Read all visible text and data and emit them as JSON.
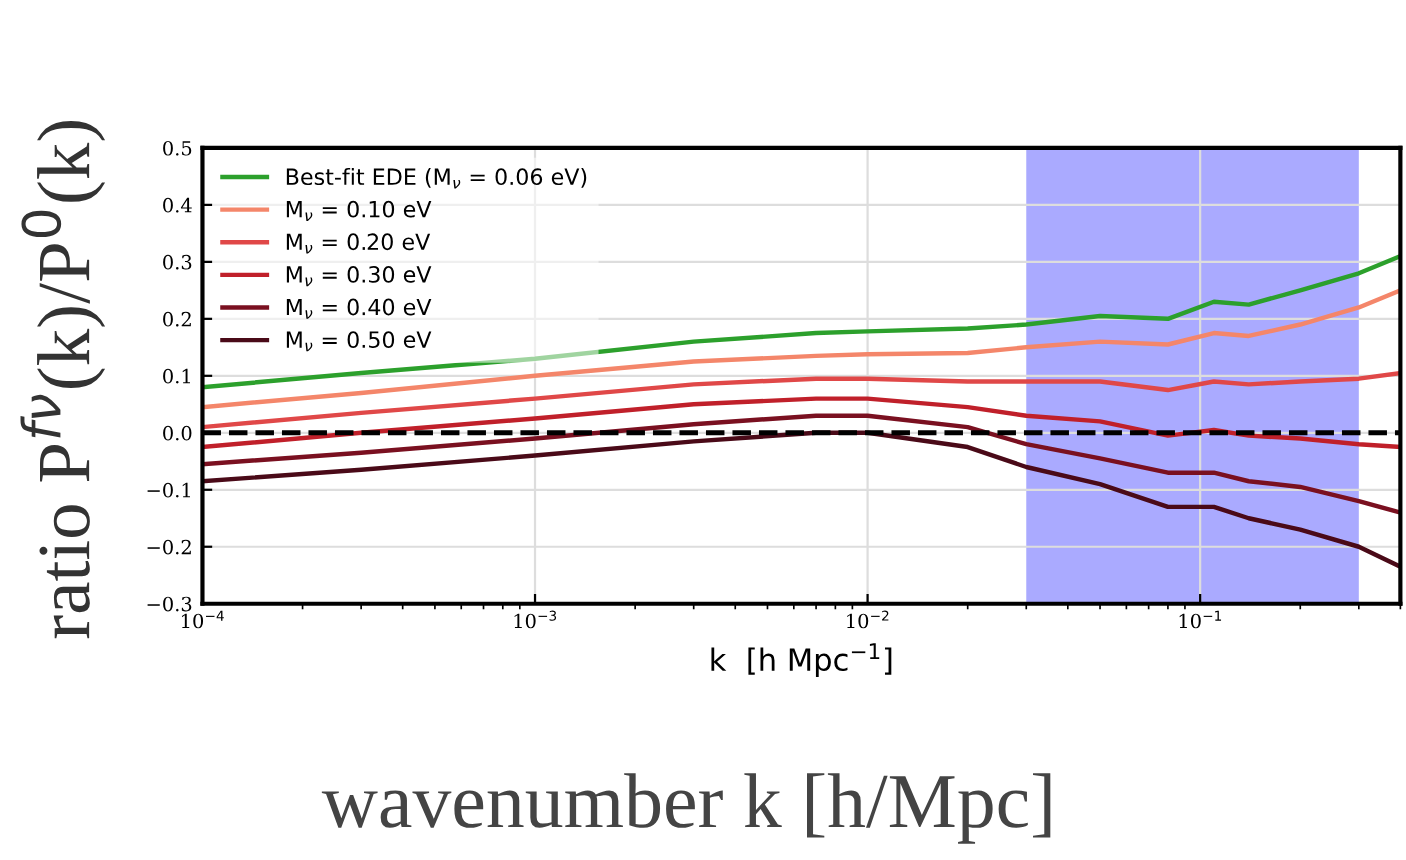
{
  "chart_data": {
    "type": "line",
    "ylabel": "ratio P$^{fν}$(k)/P$^{0}$(k)",
    "xlabel": "k  [h Mpc$^{−1}$]",
    "annotations": [
      "wavenumber k [h/Mpc]"
    ],
    "x": [
      0.0001,
      0.0003,
      0.001,
      0.003,
      0.007,
      0.01,
      0.02,
      0.03,
      0.05,
      0.08,
      0.11,
      0.14,
      0.2,
      0.3,
      0.4
    ],
    "series": [
      {
        "name": "Best-fit EDE (M$_{ν}$ = 0.06 eV)",
        "color": "#2ca02c",
        "values": [
          0.08,
          0.105,
          0.13,
          0.16,
          0.175,
          0.178,
          0.183,
          0.19,
          0.205,
          0.2,
          0.23,
          0.225,
          0.25,
          0.28,
          0.31
        ]
      },
      {
        "name": "M$_{ν}$ = 0.10 eV",
        "color": "#f4866a",
        "values": [
          0.045,
          0.07,
          0.1,
          0.125,
          0.135,
          0.138,
          0.14,
          0.15,
          0.16,
          0.155,
          0.175,
          0.17,
          0.19,
          0.22,
          0.25
        ]
      },
      {
        "name": "M$_{ν}$ = 0.20 eV",
        "color": "#e04848",
        "values": [
          0.01,
          0.035,
          0.06,
          0.085,
          0.095,
          0.095,
          0.09,
          0.09,
          0.09,
          0.075,
          0.09,
          0.085,
          0.09,
          0.095,
          0.105
        ]
      },
      {
        "name": "M$_{ν}$ = 0.30 eV",
        "color": "#c0202a",
        "values": [
          -0.025,
          0.0,
          0.025,
          0.05,
          0.06,
          0.06,
          0.045,
          0.03,
          0.02,
          -0.005,
          0.005,
          -0.005,
          -0.01,
          -0.02,
          -0.025
        ]
      },
      {
        "name": "M$_{ν}$ = 0.40 eV",
        "color": "#7a1020",
        "values": [
          -0.055,
          -0.035,
          -0.01,
          0.015,
          0.03,
          0.03,
          0.01,
          -0.02,
          -0.045,
          -0.07,
          -0.07,
          -0.085,
          -0.095,
          -0.12,
          -0.14
        ]
      },
      {
        "name": "M$_{ν}$ = 0.50 eV",
        "color": "#4a0a18",
        "values": [
          -0.085,
          -0.065,
          -0.04,
          -0.015,
          0.0,
          0.0,
          -0.025,
          -0.06,
          -0.09,
          -0.13,
          -0.13,
          -0.15,
          -0.17,
          -0.2,
          -0.235
        ]
      }
    ],
    "log": "x",
    "xlim": [
      0.0001,
      0.4
    ],
    "xticks": [
      {
        "value": 0.0001,
        "label": "10$^{−4}$"
      },
      {
        "value": 0.001,
        "label": "10$^{−3}$"
      },
      {
        "value": 0.01,
        "label": "10$^{−2}$"
      },
      {
        "value": 0.1,
        "label": "10$^{−1}$"
      }
    ],
    "ylim": [
      -0.3,
      0.5
    ],
    "yticks": [
      {
        "value": -0.3,
        "label": "−0.3"
      },
      {
        "value": -0.2,
        "label": "−0.2"
      },
      {
        "value": -0.1,
        "label": "−0.1"
      },
      {
        "value": 0,
        "label": "0.0"
      },
      0.1,
      0.2,
      0.3,
      0.4,
      0.5
    ],
    "ref_lines": [
      {
        "axis": "y",
        "value": 0,
        "color": "#000000",
        "line_style": "dashed"
      }
    ],
    "bands": [
      {
        "axis": "x",
        "from": 0.03,
        "to": 0.3,
        "color": "#aaaaff"
      }
    ],
    "grid": true,
    "legend": "top left",
    "marker": "none",
    "line_style": "solid"
  }
}
